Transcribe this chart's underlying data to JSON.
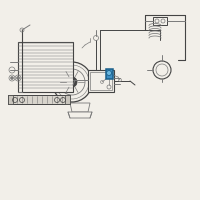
{
  "bg_color": "#f2efe9",
  "line_color": "#7a7a7a",
  "dark_line": "#444444",
  "highlight_color": "#3d8fc4",
  "highlight_edge": "#1a5f8a",
  "white_fill": "#ffffff",
  "fig_size": [
    2.0,
    2.0
  ],
  "dpi": 100
}
